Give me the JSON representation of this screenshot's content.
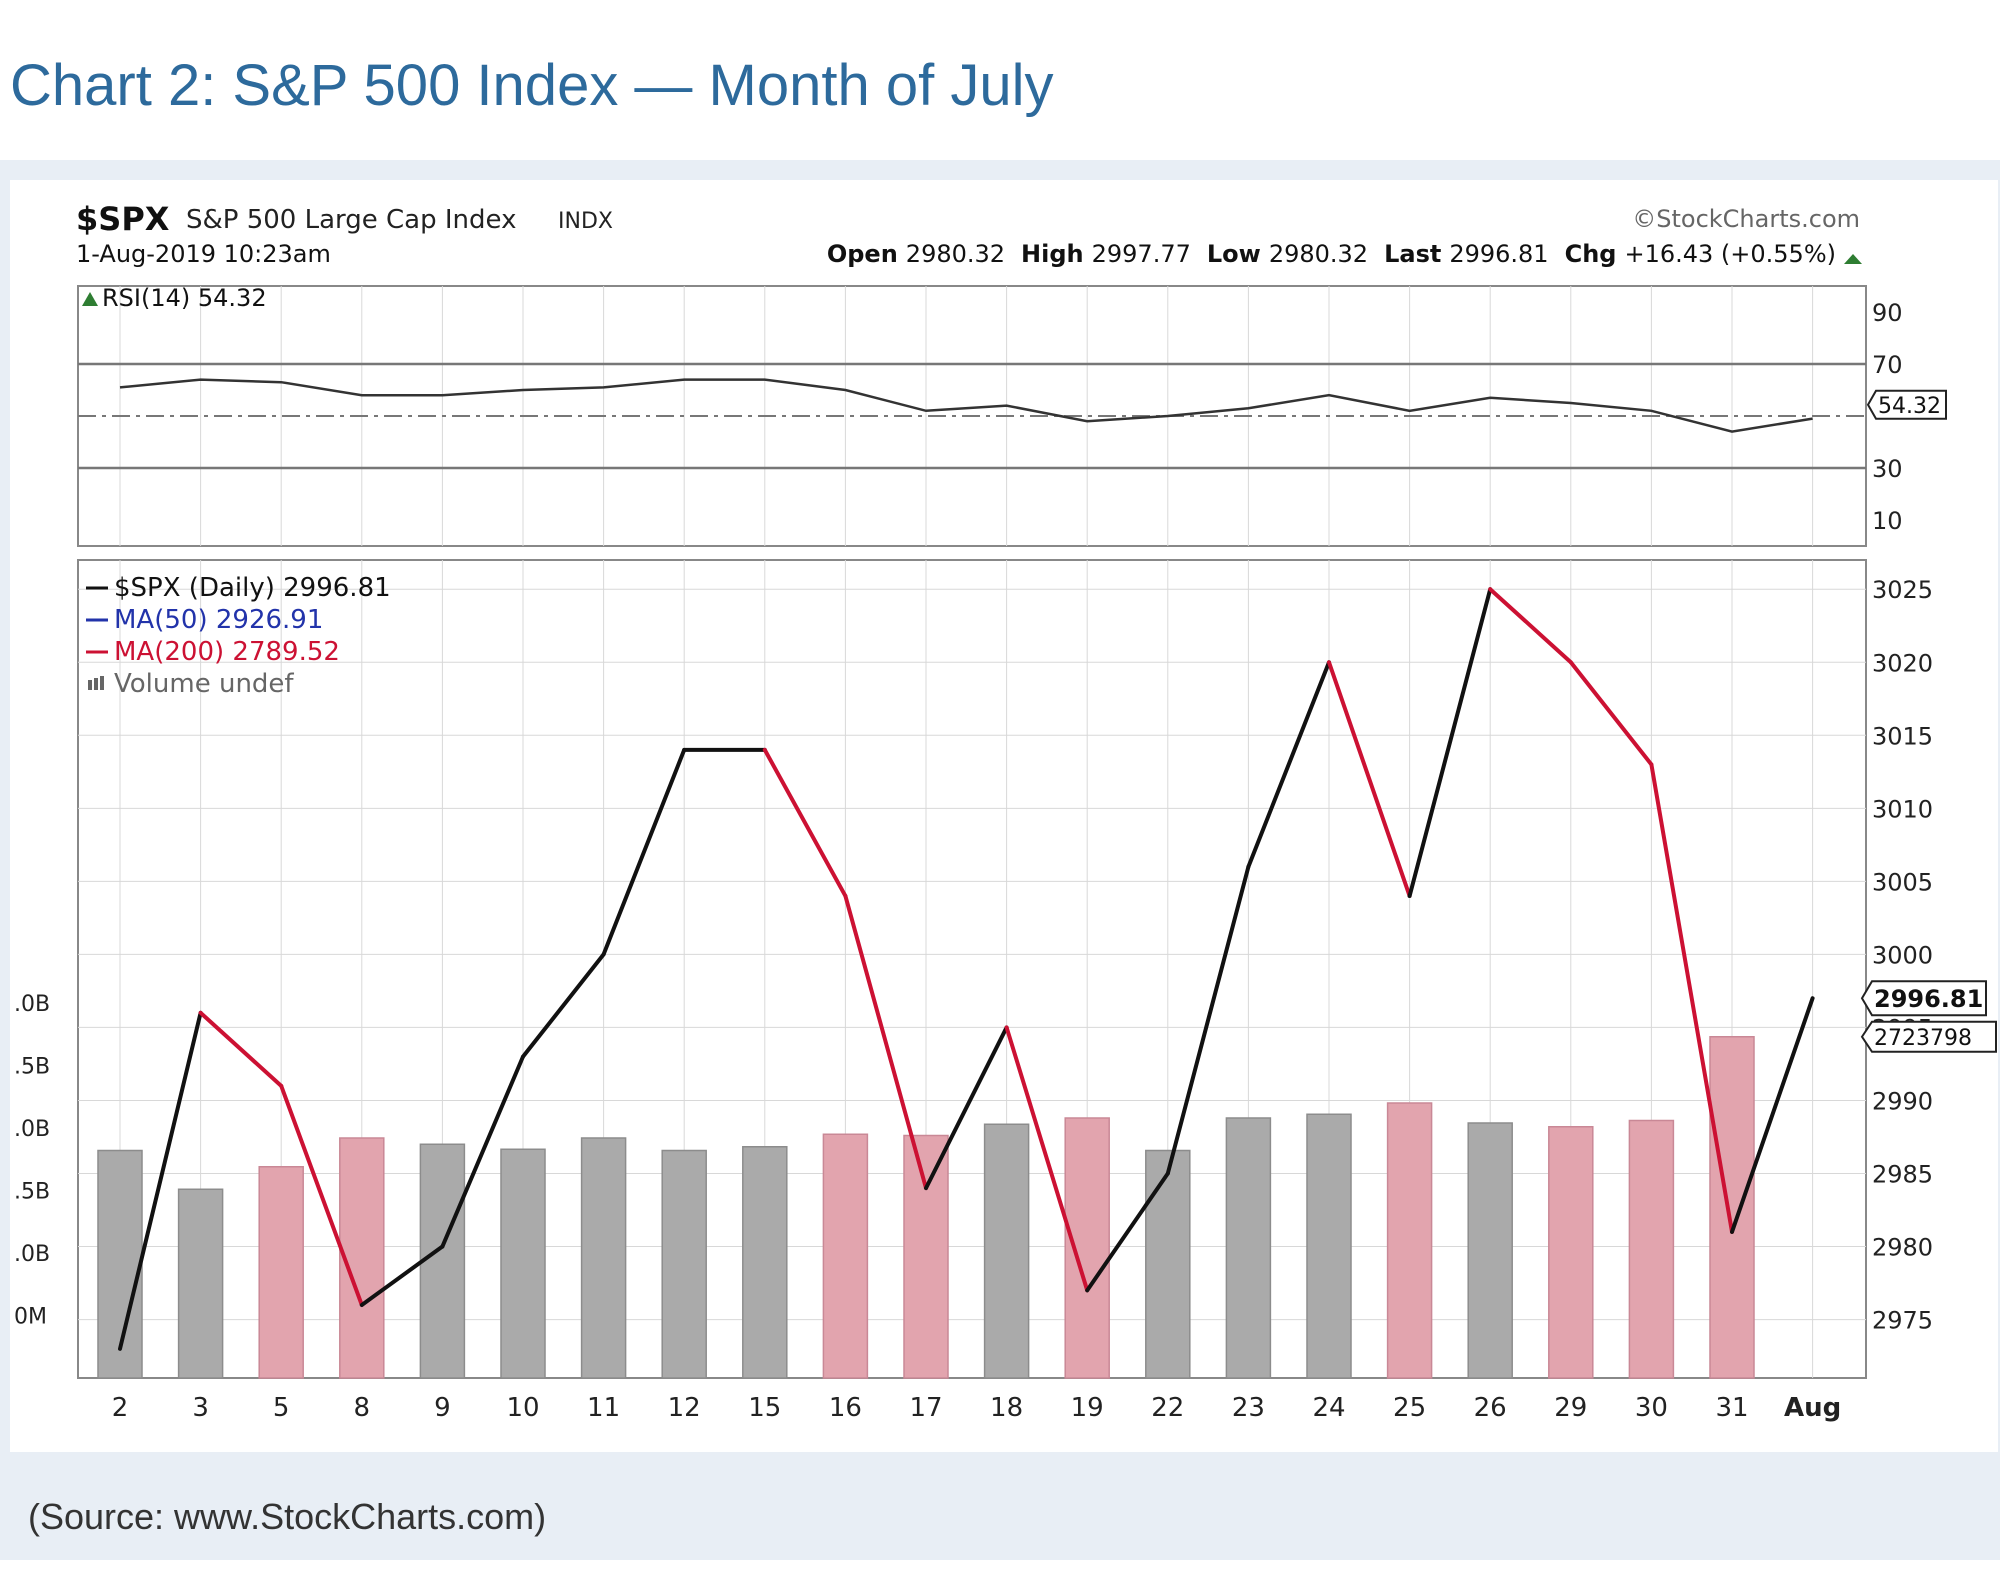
{
  "page": {
    "title": "Chart 2:  S&P 500 Index — Month of July",
    "source": "(Source: www.StockCharts.com)"
  },
  "chart_data": {
    "type": "line",
    "symbol": "$SPX",
    "name": "S&P 500 Large Cap Index",
    "exchange": "INDX",
    "watermark": "©StockCharts.com",
    "date": "1-Aug-2019 10:23am",
    "quote": [
      {
        "label": "Open",
        "value": "2980.32"
      },
      {
        "label": "High",
        "value": "2997.77"
      },
      {
        "label": "Low",
        "value": "2980.32"
      },
      {
        "label": "Last",
        "value": "2996.81"
      },
      {
        "label": "Chg",
        "value": "+16.43 (+0.55%)"
      }
    ],
    "rsi": {
      "label": "RSI(14) 54.32",
      "tag": "54.32",
      "value": 54.32,
      "ylim": [
        0,
        100
      ],
      "ticks": [
        "90",
        "70",
        "30",
        "10"
      ],
      "values": [
        61,
        64,
        63,
        58,
        58,
        60,
        61,
        64,
        64,
        60,
        52,
        54,
        48,
        50,
        53,
        58,
        52,
        57,
        55,
        52,
        44,
        49
      ]
    },
    "legend": [
      {
        "text": "$SPX (Daily) 2996.81",
        "color": "#111111"
      },
      {
        "text": "MA(50) 2926.91",
        "color": "#2233aa"
      },
      {
        "text": "MA(200) 2789.52",
        "color": "#cc1133"
      },
      {
        "text": "Volume undef",
        "color": "#666666"
      }
    ],
    "categories": [
      "2",
      "3",
      "5",
      "8",
      "9",
      "10",
      "11",
      "12",
      "15",
      "16",
      "17",
      "18",
      "19",
      "22",
      "23",
      "24",
      "25",
      "26",
      "29",
      "30",
      "31",
      "Aug"
    ],
    "series": [
      {
        "name": "$SPX (Daily)",
        "values": [
          2973,
          2996,
          2991,
          2976,
          2980,
          2993,
          3000,
          3014,
          3014,
          3004,
          2984,
          2995,
          2977,
          2985,
          3006,
          3020,
          3004,
          3025,
          3020,
          3013,
          2981,
          2997
        ]
      }
    ],
    "volume": {
      "values": [
        1.82,
        1.51,
        1.69,
        1.92,
        1.87,
        1.83,
        1.92,
        1.82,
        1.85,
        1.95,
        1.94,
        2.03,
        2.08,
        1.82,
        2.08,
        2.11,
        2.2,
        2.04,
        2.01,
        2.06,
        2.73,
        0
      ],
      "down": [
        false,
        false,
        true,
        true,
        false,
        false,
        false,
        false,
        false,
        true,
        true,
        false,
        true,
        false,
        false,
        false,
        true,
        false,
        true,
        true,
        true,
        false
      ],
      "ticks": [
        ".0B",
        ".5B",
        ".0B",
        ".5B",
        ".0B",
        "0M"
      ],
      "tag": "2723798"
    },
    "ylim": [
      2971,
      3027
    ],
    "yticks": [
      "3025",
      "3020",
      "3015",
      "3010",
      "3005",
      "3000",
      "2995",
      "2990",
      "2985",
      "2980",
      "2975"
    ],
    "last_tag": "2996.81",
    "colors": {
      "up": "#111111",
      "down": "#cc1133",
      "vol_up": "#aaaaaa",
      "vol_down": "#e2a4ae",
      "grid": "#d8d8d8",
      "axis": "#555555"
    }
  }
}
